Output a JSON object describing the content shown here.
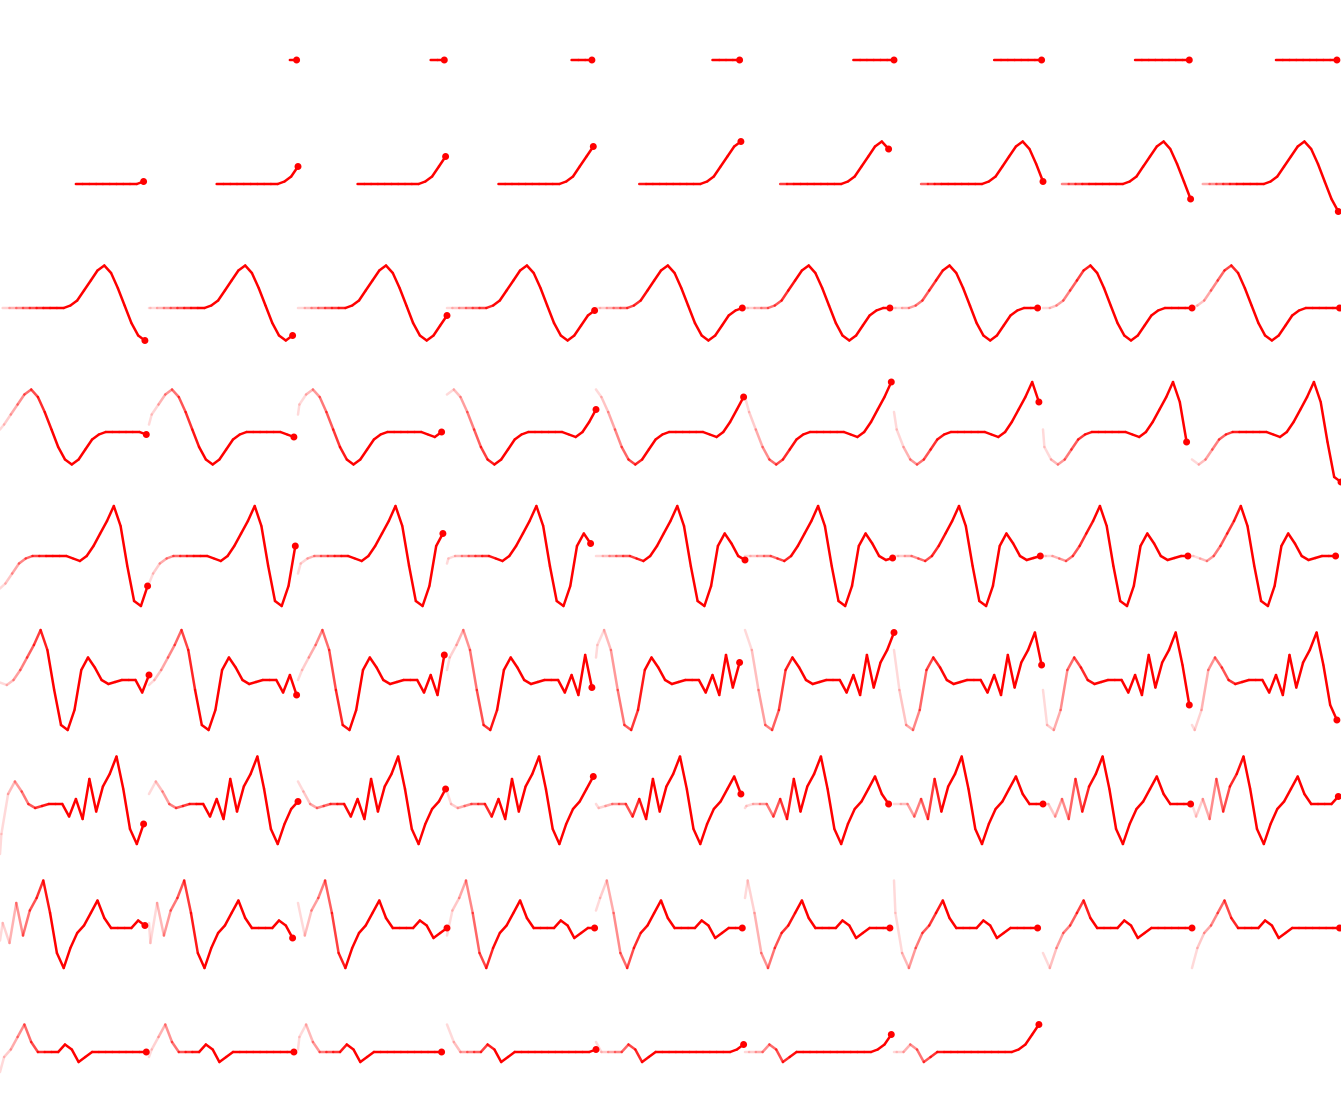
{
  "sheet": {
    "color": "#ff0000",
    "fade_color": "#ffffff",
    "grid": {
      "columns": 9,
      "rows": 9
    },
    "frame_count": 79,
    "description_free": true,
    "waveform": {
      "samples": [
        0,
        0,
        0,
        0,
        0,
        0,
        0,
        0,
        0,
        0,
        0.05,
        0.15,
        0.35,
        0.55,
        0.75,
        0.85,
        0.7,
        0.4,
        0.05,
        -0.3,
        -0.55,
        -0.65,
        -0.55,
        -0.35,
        -0.15,
        -0.05,
        0,
        0,
        0,
        0,
        0,
        0,
        -0.05,
        -0.1,
        0.0,
        0.2,
        0.45,
        0.7,
        1.0,
        0.6,
        -0.2,
        -0.9,
        -1.0,
        -0.6,
        0.2,
        0.45,
        0.25,
        0.0,
        -0.08,
        -0.04,
        0,
        0,
        0,
        -0.25,
        0.1,
        -0.3,
        0.5,
        -0.15,
        0.35,
        0.6,
        0.95,
        0.3,
        -0.5,
        -0.8,
        -0.4,
        -0.1,
        0.05,
        0.3,
        0.55,
        0.2,
        0,
        0,
        0,
        0,
        0.15,
        0.05,
        -0.2,
        -0.1,
        0,
        0
      ]
    }
  }
}
